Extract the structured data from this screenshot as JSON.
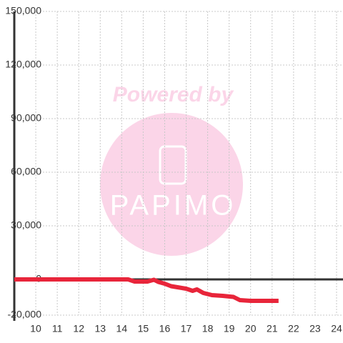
{
  "chart_data": {
    "type": "line",
    "watermark": {
      "title": "Powered by",
      "brand": "PAPIMO"
    },
    "x": [
      9,
      14,
      14.3,
      14.6,
      15.2,
      15.5,
      15.7,
      16,
      16.3,
      16.6,
      17,
      17.3,
      17.5,
      17.8,
      18.2,
      18.7,
      19.2,
      19.5,
      20,
      21.3
    ],
    "series": [
      {
        "color": "#e8253a",
        "values": [
          0,
          0,
          0,
          -1200,
          -1200,
          -200,
          -1400,
          -2400,
          -3800,
          -4400,
          -5200,
          -6400,
          -5600,
          -7600,
          -8800,
          -9200,
          -9800,
          -11600,
          -12000,
          -12000
        ]
      }
    ],
    "xlim": [
      9,
      24.3
    ],
    "xticks": [
      10,
      11,
      12,
      13,
      14,
      15,
      16,
      17,
      18,
      19,
      20,
      21,
      22,
      23,
      24
    ],
    "ylim": [
      -20000,
      150000
    ],
    "yticks": [
      {
        "value": -20000,
        "label": "-20,000"
      },
      0,
      {
        "value": 30000,
        "label": "30,000"
      },
      {
        "value": 60000,
        "label": "60,000"
      },
      {
        "value": 90000,
        "label": "90,000"
      },
      {
        "value": 120000,
        "label": "120,000"
      },
      {
        "value": 150000,
        "label": "150,000"
      }
    ],
    "grid": true
  }
}
